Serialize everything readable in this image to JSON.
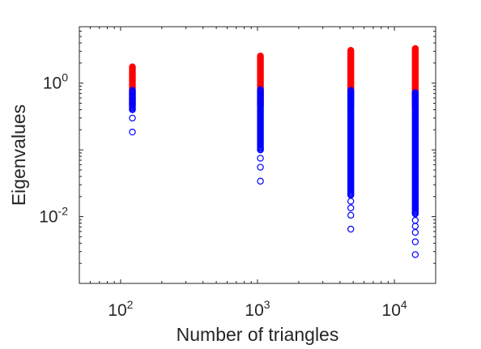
{
  "chart_data": {
    "type": "scatter",
    "title": "",
    "xlabel": "Number of triangles",
    "ylabel": "Eigenvalues",
    "x_scale": "log",
    "y_scale": "log",
    "xlim": [
      50,
      20000
    ],
    "ylim": [
      0.001,
      7
    ],
    "grid": false,
    "legend": "none",
    "x_ticks": [
      {
        "base": "10",
        "exp": "2",
        "value": 100
      },
      {
        "base": "10",
        "exp": "3",
        "value": 1000
      },
      {
        "base": "10",
        "exp": "4",
        "value": 10000
      }
    ],
    "y_ticks": [
      {
        "base": "10",
        "exp": "0",
        "value": 1
      },
      {
        "base": "10",
        "exp": "-2",
        "value": 0.01
      }
    ],
    "series": [
      {
        "color": "#ff0000",
        "marker": "filled-circle",
        "points_by_x": [
          {
            "x": 122,
            "y_min": 0.45,
            "y_max": 1.75
          },
          {
            "x": 1050,
            "y_min": 0.45,
            "y_max": 2.55
          },
          {
            "x": 4800,
            "y_min": 0.45,
            "y_max": 3.1
          },
          {
            "x": 14200,
            "y_min": 0.45,
            "y_max": 3.3
          }
        ]
      },
      {
        "color": "#0000ff",
        "marker": "open-circle",
        "points_by_x": [
          {
            "x": 122,
            "y_min": 0.185,
            "y_max": 0.78,
            "outliers": [
              0.185,
              0.3,
              0.4
            ]
          },
          {
            "x": 1050,
            "y_min": 0.034,
            "y_max": 0.8,
            "outliers": [
              0.034,
              0.055,
              0.075,
              0.1
            ]
          },
          {
            "x": 4800,
            "y_min": 0.0065,
            "y_max": 0.78,
            "outliers": [
              0.0065,
              0.0105,
              0.0135,
              0.017,
              0.021
            ]
          },
          {
            "x": 14200,
            "y_min": 0.0027,
            "y_max": 0.72,
            "outliers": [
              0.0027,
              0.0042,
              0.0058,
              0.0072,
              0.0088,
              0.011
            ]
          }
        ]
      }
    ]
  }
}
